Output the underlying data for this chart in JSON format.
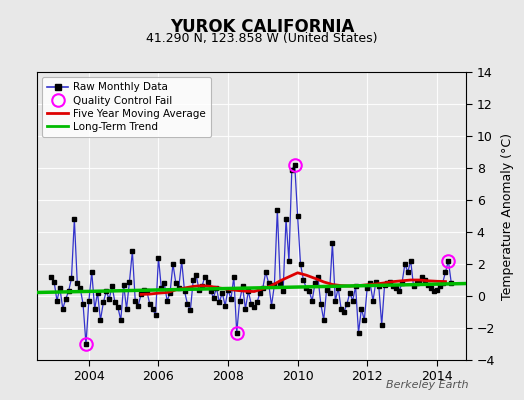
{
  "title": "YUROK CALIFORNIA",
  "subtitle": "41.290 N, 123.858 W (United States)",
  "ylabel": "Temperature Anomaly (°C)",
  "watermark": "Berkeley Earth",
  "ylim": [
    -4,
    14
  ],
  "yticks": [
    -4,
    -2,
    0,
    2,
    4,
    6,
    8,
    10,
    12,
    14
  ],
  "xlim_start": 2002.5,
  "xlim_end": 2014.85,
  "xticks": [
    2004,
    2006,
    2008,
    2010,
    2012,
    2014
  ],
  "bg_color": "#e8e8e8",
  "plot_bg_color": "#e8e8e8",
  "raw_line_color": "#3333cc",
  "raw_marker_color": "#000000",
  "moving_avg_color": "#dd0000",
  "trend_color": "#00bb00",
  "qc_fail_color": "#ff00ff",
  "raw_data": [
    [
      2002.917,
      1.2
    ],
    [
      2003.0,
      0.9
    ],
    [
      2003.083,
      -0.3
    ],
    [
      2003.167,
      0.5
    ],
    [
      2003.25,
      -0.8
    ],
    [
      2003.333,
      -0.2
    ],
    [
      2003.417,
      0.3
    ],
    [
      2003.5,
      1.1
    ],
    [
      2003.583,
      4.8
    ],
    [
      2003.667,
      0.8
    ],
    [
      2003.75,
      0.5
    ],
    [
      2003.833,
      -0.5
    ],
    [
      2003.917,
      -3.0
    ],
    [
      2004.0,
      -0.3
    ],
    [
      2004.083,
      1.5
    ],
    [
      2004.167,
      -0.8
    ],
    [
      2004.25,
      0.2
    ],
    [
      2004.333,
      -1.5
    ],
    [
      2004.417,
      -0.4
    ],
    [
      2004.5,
      0.3
    ],
    [
      2004.583,
      -0.2
    ],
    [
      2004.667,
      0.6
    ],
    [
      2004.75,
      -0.4
    ],
    [
      2004.833,
      -0.7
    ],
    [
      2004.917,
      -1.5
    ],
    [
      2005.0,
      0.7
    ],
    [
      2005.083,
      -0.8
    ],
    [
      2005.167,
      0.9
    ],
    [
      2005.25,
      2.8
    ],
    [
      2005.333,
      -0.3
    ],
    [
      2005.417,
      -0.6
    ],
    [
      2005.5,
      0.1
    ],
    [
      2005.583,
      0.4
    ],
    [
      2005.667,
      0.3
    ],
    [
      2005.75,
      -0.5
    ],
    [
      2005.833,
      -0.8
    ],
    [
      2005.917,
      -1.2
    ],
    [
      2006.0,
      2.4
    ],
    [
      2006.083,
      0.5
    ],
    [
      2006.167,
      0.8
    ],
    [
      2006.25,
      -0.3
    ],
    [
      2006.333,
      0.2
    ],
    [
      2006.417,
      2.0
    ],
    [
      2006.5,
      0.8
    ],
    [
      2006.583,
      0.5
    ],
    [
      2006.667,
      2.2
    ],
    [
      2006.75,
      0.3
    ],
    [
      2006.833,
      -0.5
    ],
    [
      2006.917,
      -0.9
    ],
    [
      2007.0,
      1.0
    ],
    [
      2007.083,
      1.3
    ],
    [
      2007.167,
      0.4
    ],
    [
      2007.25,
      0.6
    ],
    [
      2007.333,
      1.2
    ],
    [
      2007.417,
      0.9
    ],
    [
      2007.5,
      0.3
    ],
    [
      2007.583,
      -0.1
    ],
    [
      2007.667,
      0.5
    ],
    [
      2007.75,
      -0.4
    ],
    [
      2007.833,
      0.2
    ],
    [
      2007.917,
      -0.6
    ],
    [
      2008.0,
      0.4
    ],
    [
      2008.083,
      -0.2
    ],
    [
      2008.167,
      1.2
    ],
    [
      2008.25,
      -2.3
    ],
    [
      2008.333,
      -0.3
    ],
    [
      2008.417,
      0.6
    ],
    [
      2008.5,
      -0.8
    ],
    [
      2008.583,
      0.3
    ],
    [
      2008.667,
      -0.5
    ],
    [
      2008.75,
      -0.7
    ],
    [
      2008.833,
      -0.4
    ],
    [
      2008.917,
      0.2
    ],
    [
      2009.0,
      0.5
    ],
    [
      2009.083,
      1.5
    ],
    [
      2009.167,
      0.8
    ],
    [
      2009.25,
      -0.6
    ],
    [
      2009.333,
      0.7
    ],
    [
      2009.417,
      5.4
    ],
    [
      2009.5,
      0.8
    ],
    [
      2009.583,
      0.3
    ],
    [
      2009.667,
      4.8
    ],
    [
      2009.75,
      2.2
    ],
    [
      2009.833,
      7.9
    ],
    [
      2009.917,
      8.2
    ],
    [
      2010.0,
      5.0
    ],
    [
      2010.083,
      2.0
    ],
    [
      2010.167,
      1.0
    ],
    [
      2010.25,
      0.5
    ],
    [
      2010.333,
      0.3
    ],
    [
      2010.417,
      -0.3
    ],
    [
      2010.5,
      0.8
    ],
    [
      2010.583,
      1.2
    ],
    [
      2010.667,
      -0.5
    ],
    [
      2010.75,
      -1.5
    ],
    [
      2010.833,
      0.4
    ],
    [
      2010.917,
      0.2
    ],
    [
      2011.0,
      3.3
    ],
    [
      2011.083,
      -0.3
    ],
    [
      2011.167,
      0.5
    ],
    [
      2011.25,
      -0.8
    ],
    [
      2011.333,
      -1.0
    ],
    [
      2011.417,
      -0.5
    ],
    [
      2011.5,
      0.2
    ],
    [
      2011.583,
      -0.3
    ],
    [
      2011.667,
      0.6
    ],
    [
      2011.75,
      -2.3
    ],
    [
      2011.833,
      -0.8
    ],
    [
      2011.917,
      -1.5
    ],
    [
      2012.0,
      0.5
    ],
    [
      2012.083,
      0.8
    ],
    [
      2012.167,
      -0.3
    ],
    [
      2012.25,
      0.9
    ],
    [
      2012.333,
      0.6
    ],
    [
      2012.417,
      -1.8
    ],
    [
      2012.5,
      0.7
    ],
    [
      2012.583,
      0.8
    ],
    [
      2012.667,
      0.9
    ],
    [
      2012.75,
      0.6
    ],
    [
      2012.833,
      0.5
    ],
    [
      2012.917,
      0.3
    ],
    [
      2013.0,
      0.8
    ],
    [
      2013.083,
      2.0
    ],
    [
      2013.167,
      1.5
    ],
    [
      2013.25,
      2.2
    ],
    [
      2013.333,
      0.6
    ],
    [
      2013.417,
      0.8
    ],
    [
      2013.5,
      0.9
    ],
    [
      2013.583,
      1.2
    ],
    [
      2013.667,
      1.0
    ],
    [
      2013.75,
      0.7
    ],
    [
      2013.833,
      0.5
    ],
    [
      2013.917,
      0.3
    ],
    [
      2014.0,
      0.4
    ],
    [
      2014.083,
      0.6
    ],
    [
      2014.167,
      0.8
    ],
    [
      2014.25,
      1.5
    ],
    [
      2014.333,
      2.2
    ],
    [
      2014.417,
      0.8
    ]
  ],
  "qc_fail_points": [
    [
      2003.917,
      -3.0
    ],
    [
      2008.25,
      -2.3
    ],
    [
      2009.917,
      8.2
    ],
    [
      2014.333,
      2.2
    ]
  ],
  "moving_avg": [
    [
      2005.5,
      0.1
    ],
    [
      2005.75,
      0.12
    ],
    [
      2006.0,
      0.18
    ],
    [
      2006.25,
      0.22
    ],
    [
      2006.5,
      0.38
    ],
    [
      2006.75,
      0.5
    ],
    [
      2007.0,
      0.6
    ],
    [
      2007.25,
      0.65
    ],
    [
      2007.5,
      0.6
    ],
    [
      2007.75,
      0.5
    ],
    [
      2008.0,
      0.42
    ],
    [
      2008.25,
      0.35
    ],
    [
      2008.5,
      0.3
    ],
    [
      2008.75,
      0.28
    ],
    [
      2009.0,
      0.45
    ],
    [
      2009.25,
      0.65
    ],
    [
      2009.5,
      0.95
    ],
    [
      2009.75,
      1.2
    ],
    [
      2010.0,
      1.45
    ],
    [
      2010.25,
      1.3
    ],
    [
      2010.5,
      1.1
    ],
    [
      2010.75,
      0.88
    ],
    [
      2011.0,
      0.72
    ],
    [
      2011.25,
      0.65
    ],
    [
      2011.5,
      0.62
    ],
    [
      2011.75,
      0.65
    ],
    [
      2012.0,
      0.7
    ],
    [
      2012.25,
      0.75
    ],
    [
      2012.5,
      0.82
    ],
    [
      2012.75,
      0.9
    ],
    [
      2013.0,
      0.95
    ],
    [
      2013.25,
      1.0
    ],
    [
      2013.5,
      1.0
    ],
    [
      2013.75,
      0.95
    ],
    [
      2014.0,
      0.92
    ],
    [
      2014.25,
      0.9
    ]
  ],
  "trend_line": [
    [
      2002.5,
      0.22
    ],
    [
      2014.85,
      0.78
    ]
  ]
}
